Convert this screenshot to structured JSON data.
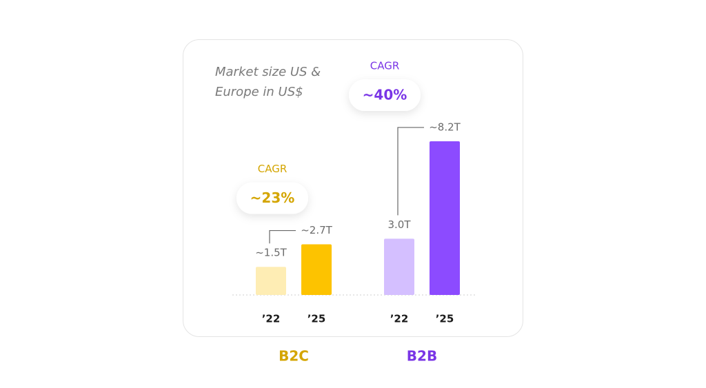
{
  "chart_data": {
    "type": "bar",
    "title": "Market size US & Europe in US$",
    "groups": [
      {
        "name": "B2C",
        "color": "#d4a500",
        "cagr_title": "CAGR",
        "cagr": "~23%",
        "categories": [
          "’22",
          "’25"
        ],
        "values": [
          1.5,
          2.7
        ],
        "value_labels": [
          "~1.5T",
          "~2.7T"
        ],
        "colors": [
          "#feedb4",
          "#fdc300"
        ]
      },
      {
        "name": "B2B",
        "color": "#7a36e6",
        "cagr_title": "CAGR",
        "cagr": "~40%",
        "categories": [
          "’22",
          "’25"
        ],
        "values": [
          3.0,
          8.2
        ],
        "value_labels": [
          "3.0T",
          "~8.2T"
        ],
        "colors": [
          "#d4bfff",
          "#8c4bff"
        ]
      }
    ]
  }
}
